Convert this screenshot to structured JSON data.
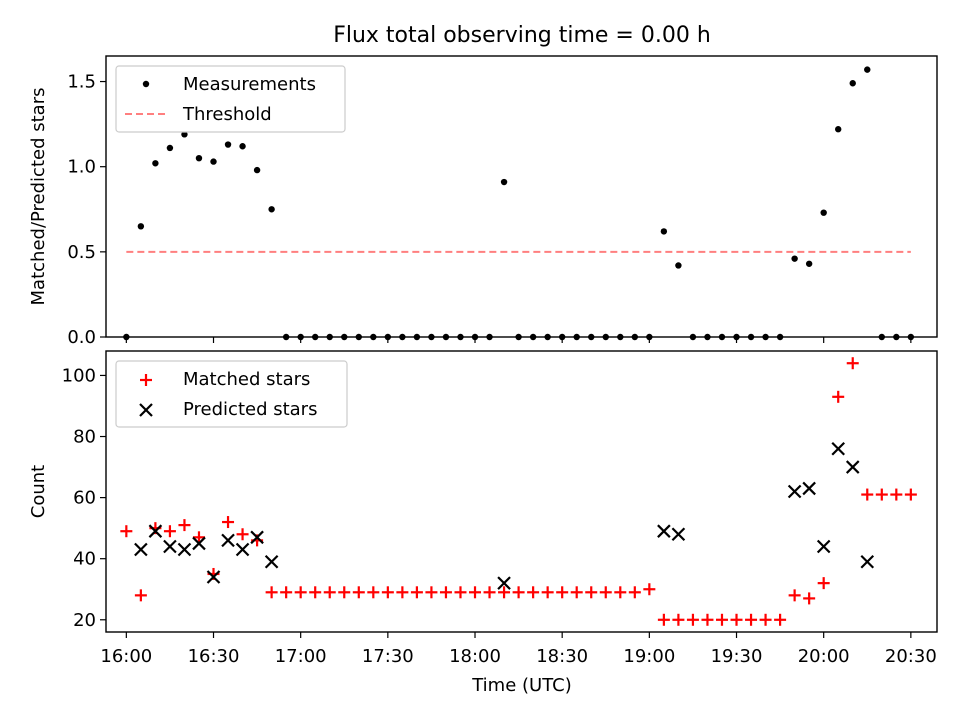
{
  "figure": {
    "title": "Flux total observing time = 0.00 h",
    "xlabel": "Time (UTC)"
  },
  "colors": {
    "measurement": "#000000",
    "threshold": "#ff7f7f",
    "matched": "#ff0000",
    "predicted": "#000000"
  },
  "chart_data": [
    {
      "type": "scatter",
      "ylabel": "Matched/Predicted stars",
      "ylim": [
        0,
        1.65
      ],
      "yticks": [
        0.0,
        0.5,
        1.0,
        1.5
      ],
      "ytick_labels": [
        "0.0",
        "0.5",
        "1.0",
        "1.5"
      ],
      "xlim": [
        "15:53",
        "20:39"
      ],
      "legend_position": "upper-left",
      "series": [
        {
          "name": "Measurements",
          "marker": "dot",
          "x": [
            "16:00",
            "16:05",
            "16:10",
            "16:15",
            "16:20",
            "16:25",
            "16:30",
            "16:35",
            "16:40",
            "16:45",
            "16:50",
            "16:55",
            "17:00",
            "17:05",
            "17:10",
            "17:15",
            "17:20",
            "17:25",
            "17:30",
            "17:35",
            "17:40",
            "17:45",
            "17:50",
            "17:55",
            "18:00",
            "18:05",
            "18:10",
            "18:15",
            "18:20",
            "18:25",
            "18:30",
            "18:35",
            "18:40",
            "18:45",
            "18:50",
            "18:55",
            "19:00",
            "19:05",
            "19:10",
            "19:15",
            "19:20",
            "19:25",
            "19:30",
            "19:35",
            "19:40",
            "19:45",
            "19:50",
            "19:55",
            "20:00",
            "20:05",
            "20:10",
            "20:15",
            "20:20",
            "20:25",
            "20:30"
          ],
          "y": [
            0.0,
            0.65,
            1.02,
            1.11,
            1.19,
            1.05,
            1.03,
            1.13,
            1.12,
            0.98,
            0.75,
            0.0,
            0.0,
            0.0,
            0.0,
            0.0,
            0.0,
            0.0,
            0.0,
            0.0,
            0.0,
            0.0,
            0.0,
            0.0,
            0.0,
            0.0,
            0.91,
            0.0,
            0.0,
            0.0,
            0.0,
            0.0,
            0.0,
            0.0,
            0.0,
            0.0,
            0.0,
            0.62,
            0.42,
            0.0,
            0.0,
            0.0,
            0.0,
            0.0,
            0.0,
            0.0,
            0.46,
            0.43,
            0.73,
            1.22,
            1.49,
            1.57,
            0.0,
            0.0,
            0.0
          ]
        },
        {
          "name": "Threshold",
          "style": "dashed",
          "x": [
            "16:00",
            "20:30"
          ],
          "y": [
            0.5,
            0.5
          ]
        }
      ]
    },
    {
      "type": "scatter",
      "ylabel": "Count",
      "ylim": [
        16,
        108
      ],
      "yticks": [
        20,
        40,
        60,
        80,
        100
      ],
      "ytick_labels": [
        "20",
        "40",
        "60",
        "80",
        "100"
      ],
      "xlim": [
        "15:53",
        "20:39"
      ],
      "xticks": [
        "16:00",
        "16:30",
        "17:00",
        "17:30",
        "18:00",
        "18:30",
        "19:00",
        "19:30",
        "20:00",
        "20:30"
      ],
      "xtick_labels": [
        "16:00",
        "16:30",
        "17:00",
        "17:30",
        "18:00",
        "18:30",
        "19:00",
        "19:30",
        "20:00",
        "20:30"
      ],
      "legend_position": "upper-left",
      "series": [
        {
          "name": "Matched stars",
          "marker": "plus",
          "x": [
            "16:00",
            "16:05",
            "16:10",
            "16:15",
            "16:20",
            "16:25",
            "16:30",
            "16:35",
            "16:40",
            "16:45",
            "16:50",
            "16:55",
            "17:00",
            "17:05",
            "17:10",
            "17:15",
            "17:20",
            "17:25",
            "17:30",
            "17:35",
            "17:40",
            "17:45",
            "17:50",
            "17:55",
            "18:00",
            "18:05",
            "18:10",
            "18:15",
            "18:20",
            "18:25",
            "18:30",
            "18:35",
            "18:40",
            "18:45",
            "18:50",
            "18:55",
            "19:00",
            "19:05",
            "19:10",
            "19:15",
            "19:20",
            "19:25",
            "19:30",
            "19:35",
            "19:40",
            "19:45",
            "19:50",
            "19:55",
            "20:00",
            "20:05",
            "20:10",
            "20:15",
            "20:20",
            "20:25",
            "20:30"
          ],
          "y": [
            49,
            28,
            50,
            49,
            51,
            47,
            35,
            52,
            48,
            46,
            29,
            29,
            29,
            29,
            29,
            29,
            29,
            29,
            29,
            29,
            29,
            29,
            29,
            29,
            29,
            29,
            29,
            29,
            29,
            29,
            29,
            29,
            29,
            29,
            29,
            29,
            30,
            20,
            20,
            20,
            20,
            20,
            20,
            20,
            20,
            20,
            28,
            27,
            32,
            93,
            104,
            61,
            61,
            61,
            61
          ]
        },
        {
          "name": "Predicted stars",
          "marker": "x",
          "x": [
            "16:05",
            "16:10",
            "16:15",
            "16:20",
            "16:25",
            "16:30",
            "16:35",
            "16:40",
            "16:45",
            "16:50",
            "18:10",
            "19:05",
            "19:10",
            "19:50",
            "19:55",
            "20:00",
            "20:05",
            "20:10",
            "20:15"
          ],
          "y": [
            43,
            49,
            44,
            43,
            45,
            34,
            46,
            43,
            47,
            39,
            32,
            49,
            48,
            62,
            63,
            44,
            76,
            70,
            39
          ]
        }
      ]
    }
  ]
}
